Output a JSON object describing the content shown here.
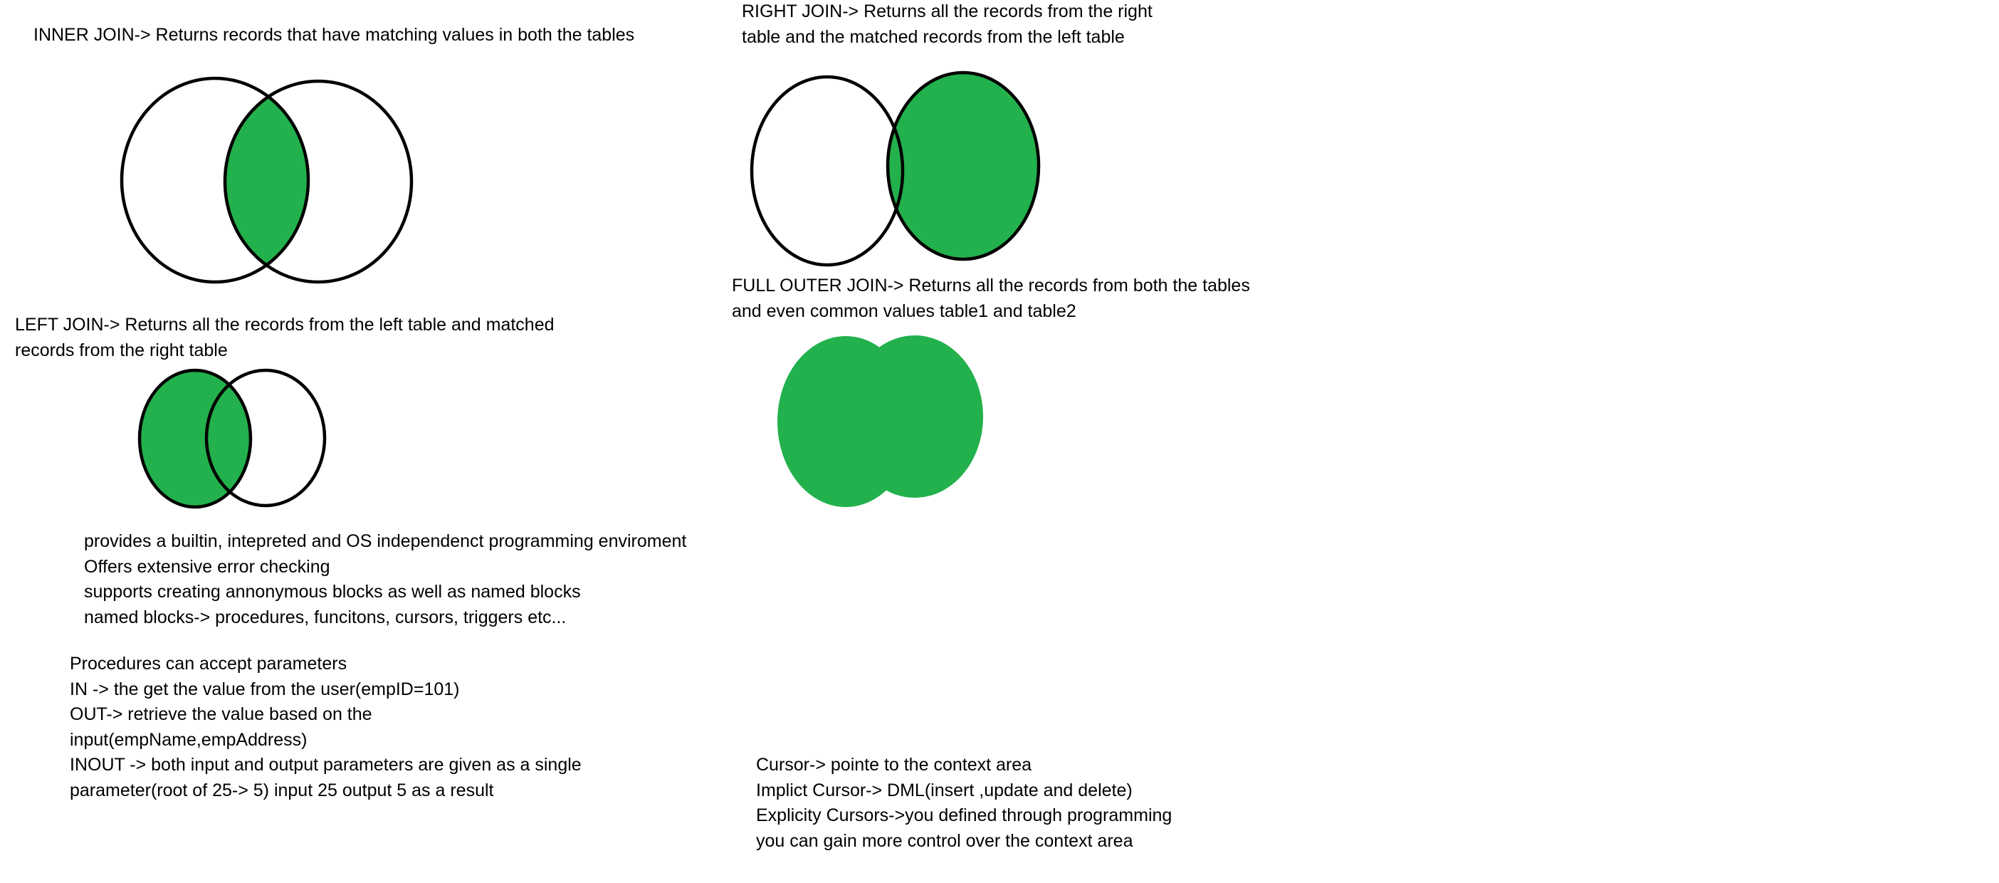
{
  "colors": {
    "fill": "#22b14c",
    "stroke": "#000000",
    "background": "#ffffff"
  },
  "inner_join": {
    "lines": [
      "INNER JOIN-> Returns records that have matching values in both the tables"
    ]
  },
  "right_join": {
    "lines": [
      "RIGHT JOIN-> Returns all the records from the right",
      "table and the matched records from the left table"
    ]
  },
  "left_join": {
    "lines": [
      "LEFT JOIN-> Returns all the records from the left table and matched",
      "records from the right table"
    ]
  },
  "full_outer_join": {
    "lines": [
      "FULL OUTER JOIN-> Returns all the records from both the tables",
      "and even common values table1 and table2"
    ]
  },
  "plsql_features": {
    "lines": [
      "provides a builtin, intepreted and OS independenct programming enviroment",
      "Offers extensive error checking",
      "supports creating annonymous blocks as well as named blocks",
      "named blocks-> procedures, funcitons, cursors, triggers etc..."
    ]
  },
  "procedures": {
    "lines": [
      "Procedures can accept parameters",
      "IN -> the get the value from the user(empID=101)",
      "OUT-> retrieve the value based on the",
      "input(empName,empAddress)",
      "INOUT -> both input and output parameters are given as a single",
      "parameter(root of 25-> 5) input 25 output 5 as a result"
    ]
  },
  "cursors": {
    "lines": [
      "Cursor-> pointe to the context area",
      "Implict Cursor-> DML(insert ,update and delete)",
      "Explicity Cursors->you defined through programming",
      "you can gain more control over the context area"
    ]
  }
}
